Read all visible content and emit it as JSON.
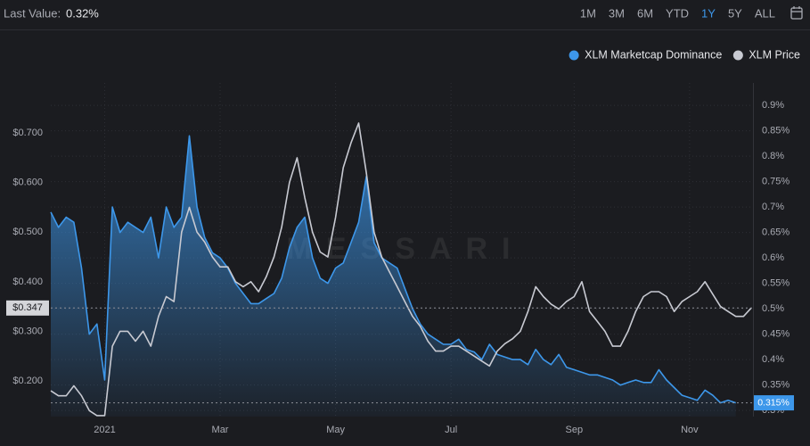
{
  "chart_data": {
    "type": "line",
    "last_value": {
      "label": "Last Value:",
      "value": "0.32%"
    },
    "ranges": [
      "1M",
      "3M",
      "6M",
      "YTD",
      "1Y",
      "5Y",
      "ALL"
    ],
    "active_range": "1Y",
    "watermark": "MESSARI",
    "categories": [
      null,
      null,
      null,
      null,
      null,
      null,
      null,
      "2021",
      null,
      null,
      null,
      null,
      null,
      null,
      null,
      null,
      null,
      null,
      null,
      null,
      null,
      null,
      "Mar",
      null,
      null,
      null,
      null,
      null,
      null,
      null,
      null,
      null,
      null,
      null,
      null,
      null,
      null,
      "May",
      null,
      null,
      null,
      null,
      null,
      null,
      null,
      null,
      null,
      null,
      null,
      null,
      null,
      null,
      "Jul",
      null,
      null,
      null,
      null,
      null,
      null,
      null,
      null,
      null,
      null,
      null,
      null,
      null,
      null,
      null,
      "Sep",
      null,
      null,
      null,
      null,
      null,
      null,
      null,
      null,
      null,
      null,
      null,
      null,
      null,
      null,
      "Nov",
      null,
      null,
      null,
      null,
      null,
      null,
      null,
      null
    ],
    "series": [
      {
        "name": "XLM Marketcap Dominance",
        "color": "#3d97ea",
        "axis": "y2",
        "area": true,
        "values": [
          0.69,
          0.66,
          0.68,
          0.67,
          0.58,
          0.45,
          0.47,
          0.36,
          0.7,
          0.65,
          0.67,
          0.66,
          0.65,
          0.68,
          0.6,
          0.7,
          0.66,
          0.68,
          0.84,
          0.7,
          0.64,
          0.61,
          0.6,
          0.58,
          0.55,
          0.53,
          0.51,
          0.51,
          0.52,
          0.53,
          0.56,
          0.62,
          0.66,
          0.68,
          0.6,
          0.56,
          0.55,
          0.58,
          0.59,
          0.63,
          0.67,
          0.76,
          0.63,
          0.6,
          0.59,
          0.58,
          0.54,
          0.5,
          0.47,
          0.45,
          0.44,
          0.43,
          0.43,
          0.44,
          0.42,
          0.415,
          0.4,
          0.43,
          0.41,
          0.405,
          0.4,
          0.4,
          0.39,
          0.42,
          0.4,
          0.39,
          0.41,
          0.385,
          0.38,
          0.375,
          0.37,
          0.37,
          0.365,
          0.36,
          0.35,
          0.355,
          0.36,
          0.355,
          0.355,
          0.38,
          0.36,
          0.345,
          0.33,
          0.325,
          0.32,
          0.34,
          0.33,
          0.315,
          0.32,
          0.315,
          null,
          null
        ]
      },
      {
        "name": "XLM Price",
        "color": "#c8cad2",
        "axis": "y",
        "values": [
          0.18,
          0.17,
          0.17,
          0.19,
          0.17,
          0.14,
          0.13,
          0.13,
          0.27,
          0.3,
          0.3,
          0.28,
          0.3,
          0.27,
          0.33,
          0.37,
          0.36,
          0.5,
          0.55,
          0.5,
          0.48,
          0.45,
          0.43,
          0.43,
          0.4,
          0.39,
          0.4,
          0.38,
          0.41,
          0.45,
          0.51,
          0.6,
          0.65,
          0.57,
          0.5,
          0.46,
          0.45,
          0.53,
          0.63,
          0.68,
          0.72,
          0.62,
          0.5,
          0.45,
          0.42,
          0.39,
          0.36,
          0.33,
          0.31,
          0.28,
          0.26,
          0.26,
          0.27,
          0.27,
          0.26,
          0.25,
          0.24,
          0.23,
          0.26,
          0.275,
          0.285,
          0.3,
          0.34,
          0.39,
          0.37,
          0.355,
          0.345,
          0.36,
          0.37,
          0.4,
          0.34,
          0.32,
          0.3,
          0.27,
          0.27,
          0.3,
          0.34,
          0.37,
          0.38,
          0.38,
          0.37,
          0.34,
          0.36,
          0.37,
          0.38,
          0.4,
          0.375,
          0.35,
          0.34,
          0.33,
          0.33,
          0.347
        ]
      }
    ],
    "ylim": [
      0.128,
      0.801
    ],
    "yticks": [
      {
        "value": 0.2,
        "label": "$0.200"
      },
      {
        "value": 0.3,
        "label": "$0.300"
      },
      {
        "value": 0.4,
        "label": "$0.400"
      },
      {
        "value": 0.5,
        "label": "$0.500"
      },
      {
        "value": 0.6,
        "label": "$0.600"
      },
      {
        "value": 0.7,
        "label": "$0.700"
      }
    ],
    "y2lim": [
      0.288,
      0.944
    ],
    "y2ticks": [
      {
        "value": 0.3,
        "label": "0.3%"
      },
      {
        "value": 0.35,
        "label": "0.35%"
      },
      {
        "value": 0.4,
        "label": "0.4%"
      },
      {
        "value": 0.45,
        "label": "0.45%"
      },
      {
        "value": 0.5,
        "label": "0.5%"
      },
      {
        "value": 0.55,
        "label": "0.55%"
      },
      {
        "value": 0.6,
        "label": "0.6%"
      },
      {
        "value": 0.65,
        "label": "0.65%"
      },
      {
        "value": 0.7,
        "label": "0.7%"
      },
      {
        "value": 0.75,
        "label": "0.75%"
      },
      {
        "value": 0.8,
        "label": "0.8%"
      },
      {
        "value": 0.85,
        "label": "0.85%"
      },
      {
        "value": 0.9,
        "label": "0.9%"
      }
    ],
    "current_labels": [
      {
        "value": 0.347,
        "label": "$0.347",
        "axis": "y"
      },
      {
        "value": 0.315,
        "label": "0.315%",
        "axis": "y2"
      }
    ],
    "grid": true,
    "legend": "top-right"
  }
}
